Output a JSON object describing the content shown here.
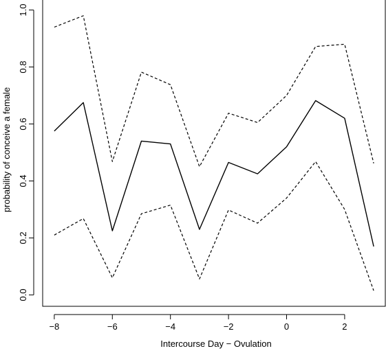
{
  "chart_data": {
    "type": "line",
    "title": "",
    "xlabel": "Intercourse Day − Ovulation",
    "ylabel": "probability of conceive a female",
    "x": [
      -8,
      -7,
      -6,
      -5,
      -4,
      -3,
      -2,
      -1,
      0,
      1,
      2,
      3
    ],
    "xticks": [
      -8,
      -6,
      -4,
      -2,
      0,
      2
    ],
    "xtick_labels": [
      "−8",
      "−6",
      "−4",
      "−2",
      "0",
      "2"
    ],
    "yticks": [
      0.0,
      0.2,
      0.4,
      0.6,
      0.8,
      1.0
    ],
    "ytick_labels": [
      "0.0",
      "0.2",
      "0.4",
      "0.6",
      "0.8",
      "1.0"
    ],
    "xlim": [
      -8.4,
      3.4
    ],
    "ylim": [
      -0.04,
      1.04
    ],
    "grid": false,
    "series": [
      {
        "style": "solid",
        "values": [
          0.575,
          0.675,
          0.225,
          0.54,
          0.53,
          0.23,
          0.465,
          0.425,
          0.52,
          0.682,
          0.62,
          0.17
        ]
      },
      {
        "style": "dashed",
        "values": [
          0.94,
          0.98,
          0.468,
          0.782,
          0.738,
          0.45,
          0.638,
          0.605,
          0.7,
          0.872,
          0.88,
          0.462
        ]
      },
      {
        "style": "dashed",
        "values": [
          0.21,
          0.268,
          0.06,
          0.285,
          0.315,
          0.056,
          0.298,
          0.252,
          0.34,
          0.468,
          0.3,
          0.015
        ]
      }
    ]
  }
}
